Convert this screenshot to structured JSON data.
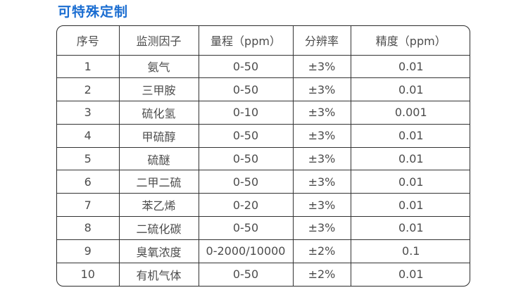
{
  "page": {
    "title": "可特殊定制"
  },
  "colors": {
    "title_accent": "#1a6dd1",
    "table_border": "#2b2b2b",
    "grid_line": "#333333",
    "cell_text": "#4c4c4c",
    "background": "#ffffff"
  },
  "table": {
    "columns": [
      "序号",
      "监测因子",
      "量程（ppm）",
      "分辨率",
      "精度（ppm）"
    ],
    "column_keys": [
      "seq",
      "factor",
      "range",
      "resolution",
      "precision"
    ],
    "rows": [
      [
        "1",
        "氨气",
        "0-50",
        "±3%",
        "0.01"
      ],
      [
        "2",
        "三甲胺",
        "0-50",
        "±3%",
        "0.01"
      ],
      [
        "3",
        "硫化氢",
        "0-10",
        "±3%",
        "0.001"
      ],
      [
        "4",
        "甲硫醇",
        "0-50",
        "±3%",
        "0.01"
      ],
      [
        "5",
        "硫醚",
        "0-50",
        "±3%",
        "0.01"
      ],
      [
        "6",
        "二甲二硫",
        "0-50",
        "±3%",
        "0.01"
      ],
      [
        "7",
        "苯乙烯",
        "0-20",
        "±3%",
        "0.01"
      ],
      [
        "8",
        "二硫化碳",
        "0-50",
        "±3%",
        "0.01"
      ],
      [
        "9",
        "臭氧浓度",
        "0-2000/10000",
        "±2%",
        "0.1"
      ],
      [
        "10",
        "有机气体",
        "0-50",
        "±2%",
        "0.01"
      ]
    ]
  }
}
